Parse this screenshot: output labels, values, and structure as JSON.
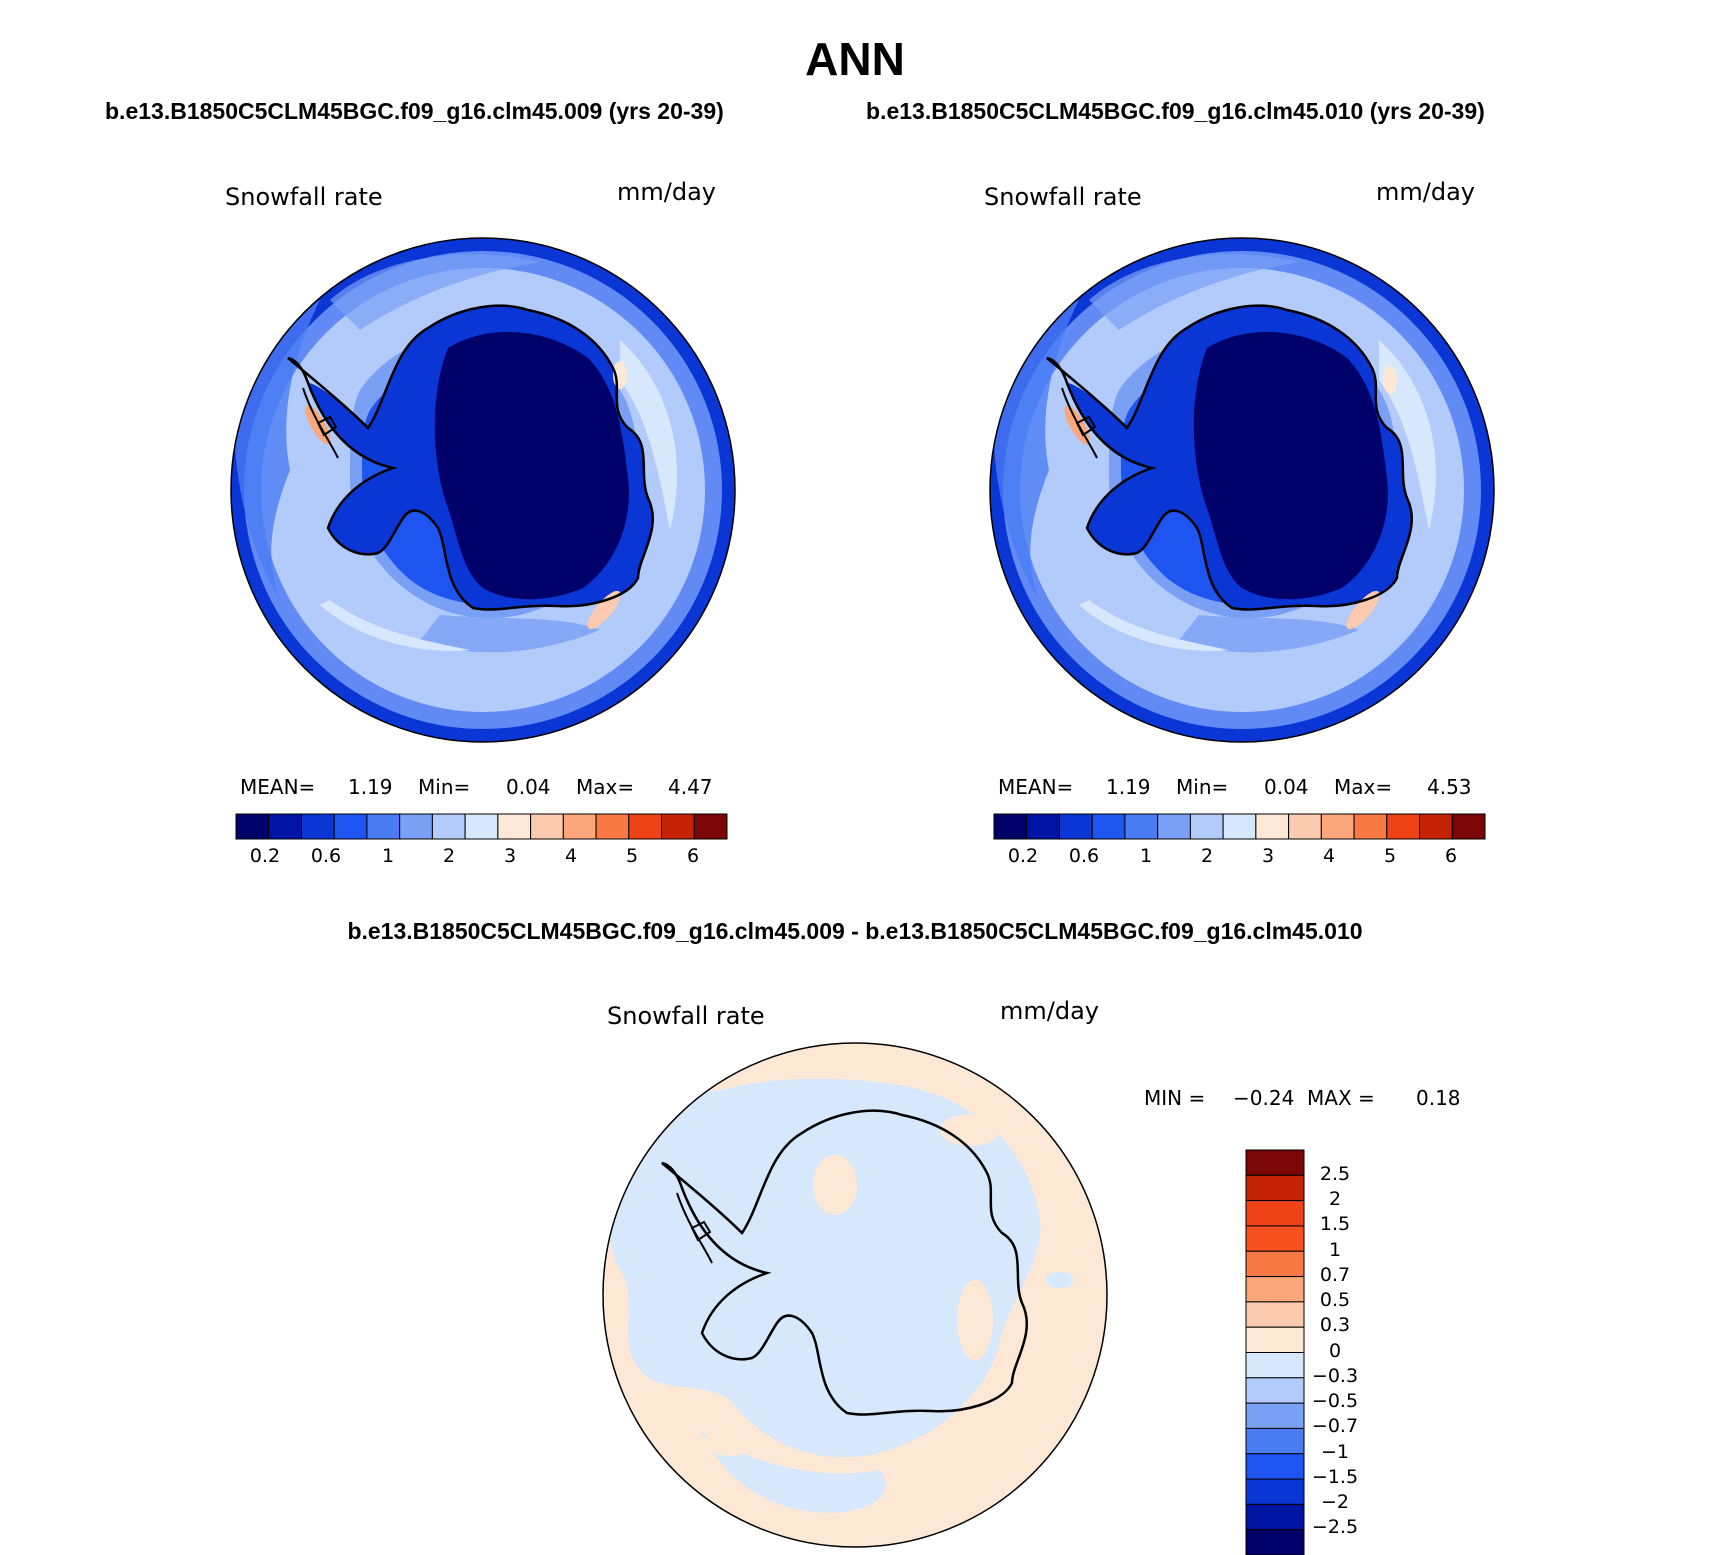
{
  "title": "ANN",
  "panels": [
    {
      "heading": "b.e13.B1850C5CLM45BGC.f09_g16.clm45.009 (yrs 20-39)",
      "variable": "Snowfall rate",
      "units": "mm/day",
      "stats": {
        "mean_label": "MEAN=",
        "mean": "1.19",
        "min_label": "Min=",
        "min": "0.04",
        "max_label": "Max=",
        "max": "4.47"
      }
    },
    {
      "heading": "b.e13.B1850C5CLM45BGC.f09_g16.clm45.010 (yrs 20-39)",
      "variable": "Snowfall rate",
      "units": "mm/day",
      "stats": {
        "mean_label": "MEAN=",
        "mean": "1.19",
        "min_label": "Min=",
        "min": "0.04",
        "max_label": "Max=",
        "max": "4.53"
      }
    }
  ],
  "diff": {
    "heading": "b.e13.B1850C5CLM45BGC.f09_g16.clm45.009 - b.e13.B1850C5CLM45BGC.f09_g16.clm45.010",
    "variable": "Snowfall rate",
    "units": "mm/day",
    "stats": {
      "min_label": "MIN =",
      "min": "−0.24",
      "max_label": "MAX =",
      "max": "0.18"
    }
  },
  "colors": {
    "field_scale": [
      "#00006b",
      "#0014a3",
      "#0a36d6",
      "#1e55f0",
      "#4a7cf4",
      "#7aa0f6",
      "#b3cbfa",
      "#d7e8fc",
      "#fde8d6",
      "#fccaae",
      "#fba77b",
      "#f87944",
      "#ef4317",
      "#c42405",
      "#7a0606"
    ],
    "diff_scale": [
      "#7a0606",
      "#c42405",
      "#ef4317",
      "#f85120",
      "#f87944",
      "#fba77b",
      "#fccaae",
      "#fde8d6",
      "#d7e8fc",
      "#b3cbfa",
      "#7aa0f6",
      "#4a7cf4",
      "#1e55f0",
      "#0a36d6",
      "#0014a3",
      "#00006b"
    ]
  },
  "chart_data": [
    {
      "type": "heatmap",
      "title": "Snowfall rate",
      "units": "mm/day",
      "projection": "south polar stereographic",
      "colorbar_ticks": [
        "0.2",
        "0.6",
        "1",
        "2",
        "3",
        "4",
        "5",
        "6"
      ],
      "levels": [
        0.2,
        0.4,
        0.6,
        0.8,
        1,
        1.5,
        2,
        2.5,
        3,
        3.5,
        4,
        4.5,
        5,
        6
      ],
      "mean": 1.19,
      "min": 0.04,
      "max": 4.47
    },
    {
      "type": "heatmap",
      "title": "Snowfall rate",
      "units": "mm/day",
      "projection": "south polar stereographic",
      "colorbar_ticks": [
        "0.2",
        "0.6",
        "1",
        "2",
        "3",
        "4",
        "5",
        "6"
      ],
      "levels": [
        0.2,
        0.4,
        0.6,
        0.8,
        1,
        1.5,
        2,
        2.5,
        3,
        3.5,
        4,
        4.5,
        5,
        6
      ],
      "mean": 1.19,
      "min": 0.04,
      "max": 4.53
    },
    {
      "type": "heatmap",
      "title": "Snowfall rate",
      "units": "mm/day",
      "projection": "south polar stereographic",
      "colorbar_ticks": [
        "2.5",
        "2",
        "1.5",
        "1",
        "0.7",
        "0.5",
        "0.3",
        "0",
        "−0.3",
        "−0.5",
        "−0.7",
        "−1",
        "−1.5",
        "−2",
        "−2.5"
      ],
      "levels": [
        2.5,
        2,
        1.5,
        1,
        0.7,
        0.5,
        0.3,
        0,
        -0.3,
        -0.5,
        -0.7,
        -1,
        -1.5,
        -2,
        -2.5
      ],
      "min": -0.24,
      "max": 0.18
    }
  ]
}
